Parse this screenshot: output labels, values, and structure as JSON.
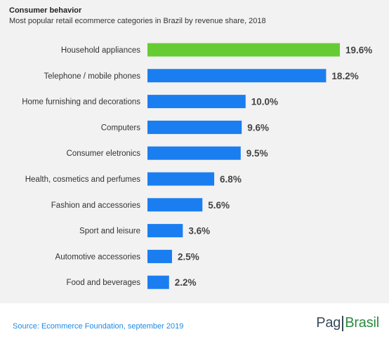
{
  "header": {
    "title": "Consumer behavior",
    "subtitle": "Most popular retail ecommerce categories in Brazil by revenue share, 2018"
  },
  "footer": {
    "source": "Source: Ecommerce Foundation, september 2019",
    "brand_left": "Pag",
    "brand_right": "Brasil"
  },
  "colors": {
    "highlight": "#66cc33",
    "bar": "#1a7ef0",
    "brand_dark": "#3b4a5a",
    "brand_green": "#2a8a3e",
    "source_text": "#1e88e5"
  },
  "chart_data": {
    "type": "bar",
    "orientation": "horizontal",
    "title": "Consumer behavior",
    "subtitle": "Most popular retail ecommerce categories in Brazil by revenue share, 2018",
    "categories": [
      "Household appliances",
      "Telephone / mobile phones",
      "Home furnishing and decorations",
      "Computers",
      "Consumer eletronics",
      "Health, cosmetics and perfumes",
      "Fashion and accessories",
      "Sport and leisure",
      "Automotive accessories",
      "Food and beverages"
    ],
    "values": [
      19.6,
      18.2,
      10.0,
      9.6,
      9.5,
      6.8,
      5.6,
      3.6,
      2.5,
      2.2
    ],
    "value_labels": [
      "19.6%",
      "18.2%",
      "10.0%",
      "9.6%",
      "9.5%",
      "6.8%",
      "5.6%",
      "3.6%",
      "2.5%",
      "2.2%"
    ],
    "unit": "%",
    "highlight_index": 0,
    "xlim": [
      0,
      19.6
    ],
    "grid": false,
    "legend": "none"
  }
}
